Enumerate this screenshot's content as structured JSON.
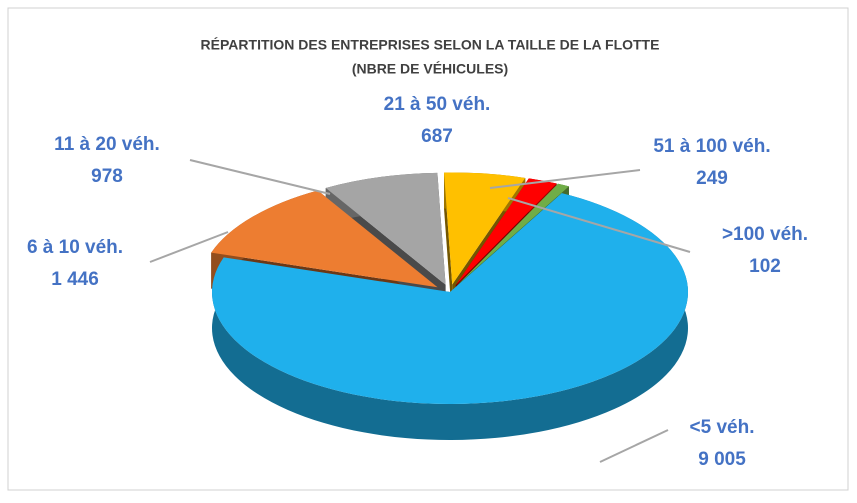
{
  "chart_data": {
    "type": "pie",
    "title": [
      "RÉPARTITION DES ENTREPRISES SELON LA TAILLE DE LA FLOTTE",
      "(NBRE DE VÉHICULES)"
    ],
    "categories": [
      "<5 véh.",
      "6 à 10 véh.",
      "11 à 20 véh.",
      "21 à 50 véh.",
      "51 à 100 véh.",
      ">100 véh."
    ],
    "values": [
      9005,
      1446,
      978,
      687,
      249,
      102
    ],
    "value_labels": [
      "9 005",
      "1 446",
      "978",
      "687",
      "249",
      "102"
    ],
    "colors": [
      "#1fb0ec",
      "#ed7d31",
      "#a5a5a5",
      "#ffc000",
      "#ff0000",
      "#70ad47"
    ]
  }
}
